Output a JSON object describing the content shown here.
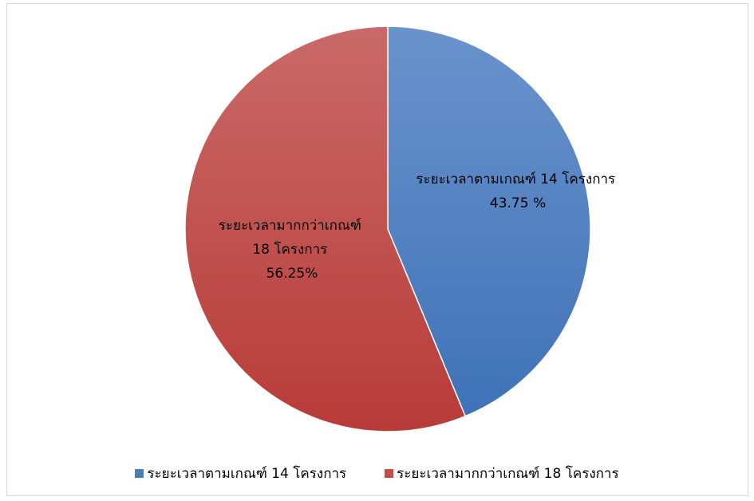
{
  "chart_data": {
    "type": "pie",
    "title": "",
    "categories": [
      "ระยะเวลาตามเกณฑ์ 14 โครงการ",
      "ระยะเวลามากกว่าเกณฑ์ 18 โครงการ"
    ],
    "values": [
      14,
      18
    ],
    "colors": [
      "#4a7ebf",
      "#c0504d"
    ],
    "data_labels": [
      [
        "ระยะเวลาตามเกณฑ์ 14 โครงการ",
        "43.75 %"
      ],
      [
        "ระยะเวลามากกว่าเกณฑ์",
        "18 โครงการ",
        "56.25%"
      ]
    ],
    "legend": {
      "position": "bottom",
      "entries": [
        "ระยะเวลาตามเกณฑ์ 14 โครงการ",
        "ระยะเวลามากกว่าเกณฑ์ 18 โครงการ"
      ]
    }
  }
}
